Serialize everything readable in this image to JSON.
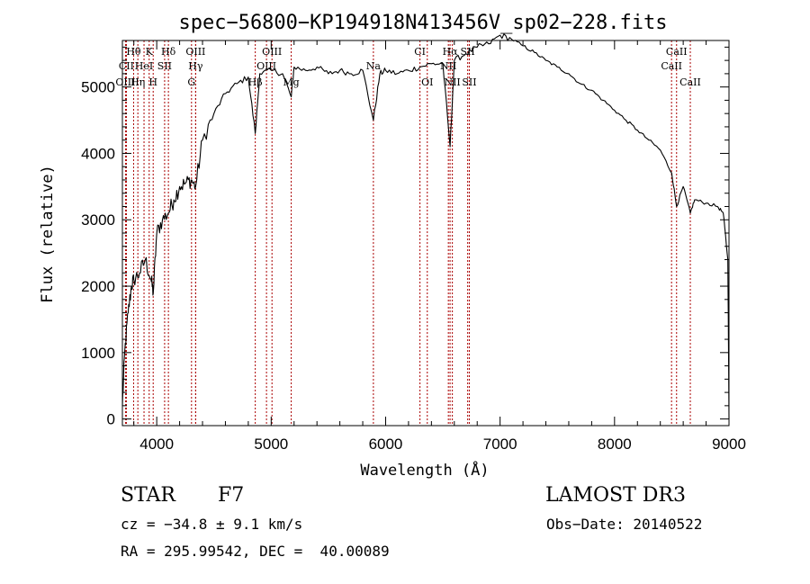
{
  "chart_data": {
    "type": "line",
    "title": "spec−56800−KP194918N413456V_sp02−228.fits",
    "xlabel": "Wavelength (Å)",
    "ylabel": "Flux (relative)",
    "xlim": [
      3700,
      9000
    ],
    "ylim": [
      -100,
      5700
    ],
    "xticks": [
      4000,
      5000,
      6000,
      7000,
      8000,
      9000
    ],
    "yticks": [
      0,
      1000,
      2000,
      3000,
      4000,
      5000
    ],
    "xtick_labels": [
      "4000",
      "5000",
      "6000",
      "7000",
      "8000",
      "9000"
    ],
    "ytick_labels": [
      "0",
      "1000",
      "2000",
      "3000",
      "4000",
      "5000"
    ],
    "grid": false,
    "series": [
      {
        "name": "spectrum",
        "x": [
          3700,
          3720,
          3750,
          3780,
          3800,
          3850,
          3900,
          3950,
          3970,
          4000,
          4050,
          4100,
          4150,
          4200,
          4250,
          4300,
          4340,
          4400,
          4500,
          4600,
          4700,
          4800,
          4861,
          4900,
          5000,
          5100,
          5175,
          5200,
          5300,
          5400,
          5500,
          5600,
          5700,
          5800,
          5893,
          5950,
          6000,
          6100,
          6200,
          6300,
          6400,
          6500,
          6563,
          6600,
          6700,
          6800,
          6900,
          7000,
          7100,
          7200,
          7300,
          7400,
          7500,
          7600,
          7700,
          7800,
          7900,
          8000,
          8100,
          8200,
          8300,
          8400,
          8500,
          8542,
          8600,
          8662,
          8700,
          8800,
          8900,
          8950,
          8990,
          9000
        ],
        "y": [
          200,
          1000,
          1600,
          2000,
          2100,
          2200,
          2400,
          2100,
          1900,
          2800,
          3000,
          3100,
          3300,
          3500,
          3550,
          3600,
          3500,
          4200,
          4600,
          4900,
          5050,
          5150,
          4300,
          5200,
          5250,
          5200,
          4850,
          5300,
          5250,
          5300,
          5200,
          5250,
          5200,
          5250,
          4500,
          5200,
          5250,
          5200,
          5250,
          5300,
          5350,
          5350,
          4100,
          5400,
          5500,
          5600,
          5650,
          5780,
          5720,
          5620,
          5520,
          5400,
          5300,
          5200,
          5050,
          4950,
          4800,
          4650,
          4500,
          4350,
          4200,
          4050,
          3700,
          3200,
          3500,
          3100,
          3300,
          3250,
          3200,
          3100,
          2400,
          0
        ]
      }
    ],
    "lines": [
      {
        "label": "Hθ",
        "wave": 3798,
        "row": 0
      },
      {
        "label": "CII",
        "wave": 3735,
        "row": 1
      },
      {
        "label": "OIII",
        "wave": 3727,
        "row": 2
      },
      {
        "label": "Hη",
        "wave": 3835,
        "row": 2
      },
      {
        "label": "HeI",
        "wave": 3889,
        "row": 1
      },
      {
        "label": "K",
        "wave": 3934,
        "row": 0
      },
      {
        "label": "H",
        "wave": 3969,
        "row": 2
      },
      {
        "label": "SII",
        "wave": 4069,
        "row": 1
      },
      {
        "label": "Hδ",
        "wave": 4102,
        "row": 0
      },
      {
        "label": "OIII",
        "wave": 4340,
        "row": 0
      },
      {
        "label": "Hγ",
        "wave": 4340,
        "row": 1
      },
      {
        "label": "G",
        "wave": 4304,
        "row": 2
      },
      {
        "label": "Hβ",
        "wave": 4861,
        "row": 2
      },
      {
        "label": "OIII",
        "wave": 5007,
        "row": 0
      },
      {
        "label": "OIII",
        "wave": 4959,
        "row": 1
      },
      {
        "label": "Mg",
        "wave": 5175,
        "row": 2
      },
      {
        "label": "Na",
        "wave": 5893,
        "row": 1
      },
      {
        "label": "CI",
        "wave": 6300,
        "row": 0
      },
      {
        "label": "OI",
        "wave": 6364,
        "row": 2
      },
      {
        "label": "Hα",
        "wave": 6563,
        "row": 0
      },
      {
        "label": "NII",
        "wave": 6548,
        "row": 1
      },
      {
        "label": "NII",
        "wave": 6583,
        "row": 2
      },
      {
        "label": "SII",
        "wave": 6717,
        "row": 0
      },
      {
        "label": "SII",
        "wave": 6731,
        "row": 2
      },
      {
        "label": "CaII",
        "wave": 8498,
        "row": 1
      },
      {
        "label": "CaII",
        "wave": 8542,
        "row": 0
      },
      {
        "label": "CaII",
        "wave": 8662,
        "row": 2
      }
    ],
    "line_color": "#aa0000"
  },
  "footer": {
    "object_class": "STAR",
    "subclass": "F7",
    "survey": "LAMOST DR3",
    "redshift": "cz = −34.8 ± 9.1 km/s",
    "obs_date": "Obs−Date: 20140522",
    "coords": "RA = 295.99542, DEC =  40.00089"
  }
}
